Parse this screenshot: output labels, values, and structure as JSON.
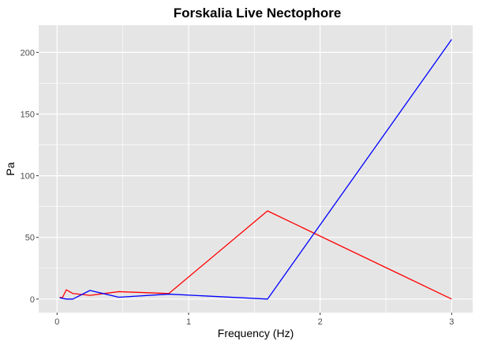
{
  "chart_data": {
    "type": "line",
    "title": "Forskalia Live Nectophore",
    "xlabel": "Frequency (Hz)",
    "ylabel": "Pa",
    "xlim": [
      -0.14,
      3.16
    ],
    "ylim": [
      -11,
      222
    ],
    "x_ticks": [
      0,
      1,
      2,
      3
    ],
    "x_tick_labels": [
      "0",
      "1",
      "2",
      "3"
    ],
    "y_ticks": [
      0,
      50,
      100,
      150,
      200
    ],
    "y_tick_labels": [
      "0",
      "50",
      "100",
      "150",
      "200"
    ],
    "grid": true,
    "legend": "none",
    "background_color": "#e5e5e5",
    "grid_color": "#ffffff",
    "series": [
      {
        "color": "#ff0000",
        "x": [
          0.02,
          0.04,
          0.07,
          0.12,
          0.25,
          0.47,
          0.85,
          1.6,
          3.0
        ],
        "y": [
          1.5,
          1.0,
          7.5,
          4.5,
          3.0,
          6.0,
          4.5,
          71.5,
          0.0
        ]
      },
      {
        "color": "#0000ff",
        "x": [
          0.02,
          0.07,
          0.12,
          0.25,
          0.47,
          0.85,
          1.6,
          3.0
        ],
        "y": [
          1.0,
          0.0,
          0.0,
          7.0,
          1.5,
          4.0,
          0.0,
          210.5
        ]
      }
    ]
  }
}
